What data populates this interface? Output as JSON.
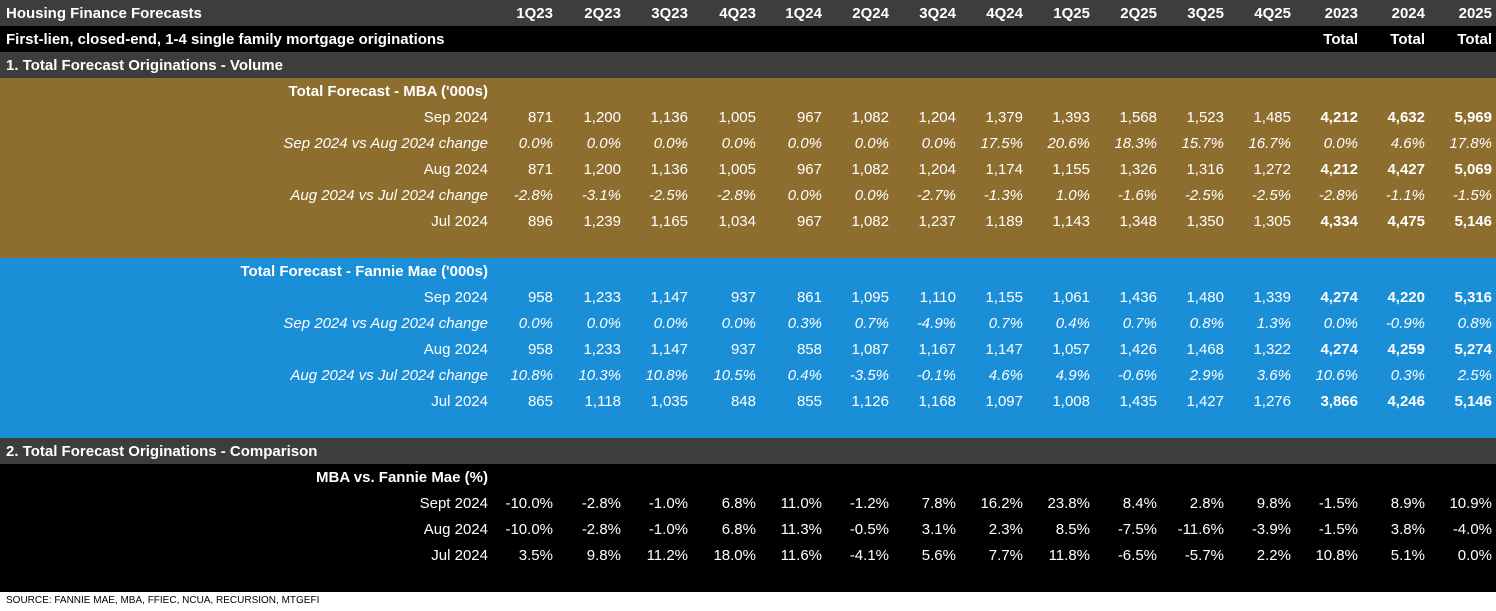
{
  "colors": {
    "header_bg": "#3d3d3d",
    "subheader_bg": "#000000",
    "mba_bg": "#8e6e2e",
    "fannie_bg": "#1a8fd8",
    "comparison_bg": "#000000",
    "text": "#ffffff"
  },
  "header": {
    "title": "Housing Finance Forecasts",
    "subtitle": "First-lien, closed-end, 1-4 single family mortgage originations",
    "columns": [
      "1Q23",
      "2Q23",
      "3Q23",
      "4Q23",
      "1Q24",
      "2Q24",
      "3Q24",
      "4Q24",
      "1Q25",
      "2Q25",
      "3Q25",
      "4Q25",
      "2023",
      "2024",
      "2025"
    ],
    "subcolumns": [
      "",
      "",
      "",
      "",
      "",
      "",
      "",
      "",
      "",
      "",
      "",
      "",
      "Total",
      "Total",
      "Total"
    ]
  },
  "section1": {
    "title": "1. Total Forecast Originations - Volume"
  },
  "mba": {
    "title": "Total Forecast - MBA ('000s)",
    "rows": [
      {
        "label": "Sep 2024",
        "style": "plain",
        "values": [
          "871",
          "1,200",
          "1,136",
          "1,005",
          "967",
          "1,082",
          "1,204",
          "1,379",
          "1,393",
          "1,568",
          "1,523",
          "1,485",
          "4,212",
          "4,632",
          "5,969"
        ]
      },
      {
        "label": "Sep 2024 vs Aug 2024 change",
        "style": "italic",
        "values": [
          "0.0%",
          "0.0%",
          "0.0%",
          "0.0%",
          "0.0%",
          "0.0%",
          "0.0%",
          "17.5%",
          "20.6%",
          "18.3%",
          "15.7%",
          "16.7%",
          "0.0%",
          "4.6%",
          "17.8%"
        ]
      },
      {
        "label": "Aug 2024",
        "style": "plain",
        "values": [
          "871",
          "1,200",
          "1,136",
          "1,005",
          "967",
          "1,082",
          "1,204",
          "1,174",
          "1,155",
          "1,326",
          "1,316",
          "1,272",
          "4,212",
          "4,427",
          "5,069"
        ]
      },
      {
        "label": "Aug 2024 vs Jul 2024 change",
        "style": "italic",
        "values": [
          "-2.8%",
          "-3.1%",
          "-2.5%",
          "-2.8%",
          "0.0%",
          "0.0%",
          "-2.7%",
          "-1.3%",
          "1.0%",
          "-1.6%",
          "-2.5%",
          "-2.5%",
          "-2.8%",
          "-1.1%",
          "-1.5%"
        ]
      },
      {
        "label": "Jul 2024",
        "style": "plain",
        "values": [
          "896",
          "1,239",
          "1,165",
          "1,034",
          "967",
          "1,082",
          "1,237",
          "1,189",
          "1,143",
          "1,348",
          "1,350",
          "1,305",
          "4,334",
          "4,475",
          "5,146"
        ]
      }
    ]
  },
  "fannie": {
    "title": "Total Forecast - Fannie Mae ('000s)",
    "rows": [
      {
        "label": "Sep 2024",
        "style": "plain",
        "values": [
          "958",
          "1,233",
          "1,147",
          "937",
          "861",
          "1,095",
          "1,110",
          "1,155",
          "1,061",
          "1,436",
          "1,480",
          "1,339",
          "4,274",
          "4,220",
          "5,316"
        ]
      },
      {
        "label": "Sep 2024 vs Aug 2024 change",
        "style": "italic",
        "values": [
          "0.0%",
          "0.0%",
          "0.0%",
          "0.0%",
          "0.3%",
          "0.7%",
          "-4.9%",
          "0.7%",
          "0.4%",
          "0.7%",
          "0.8%",
          "1.3%",
          "0.0%",
          "-0.9%",
          "0.8%"
        ]
      },
      {
        "label": "Aug 2024",
        "style": "plain",
        "values": [
          "958",
          "1,233",
          "1,147",
          "937",
          "858",
          "1,087",
          "1,167",
          "1,147",
          "1,057",
          "1,426",
          "1,468",
          "1,322",
          "4,274",
          "4,259",
          "5,274"
        ]
      },
      {
        "label": "Aug 2024 vs Jul 2024 change",
        "style": "italic",
        "values": [
          "10.8%",
          "10.3%",
          "10.8%",
          "10.5%",
          "0.4%",
          "-3.5%",
          "-0.1%",
          "4.6%",
          "4.9%",
          "-0.6%",
          "2.9%",
          "3.6%",
          "10.6%",
          "0.3%",
          "2.5%"
        ]
      },
      {
        "label": "Jul 2024",
        "style": "plain",
        "values": [
          "865",
          "1,118",
          "1,035",
          "848",
          "855",
          "1,126",
          "1,168",
          "1,097",
          "1,008",
          "1,435",
          "1,427",
          "1,276",
          "3,866",
          "4,246",
          "5,146"
        ]
      }
    ]
  },
  "section2": {
    "title": "2. Total Forecast Originations - Comparison"
  },
  "comparison": {
    "title": "MBA vs. Fannie Mae (%)",
    "rows": [
      {
        "label": "Sept 2024",
        "style": "plain",
        "values": [
          "-10.0%",
          "-2.8%",
          "-1.0%",
          "6.8%",
          "11.0%",
          "-1.2%",
          "7.8%",
          "16.2%",
          "23.8%",
          "8.4%",
          "2.8%",
          "9.8%",
          "-1.5%",
          "8.9%",
          "10.9%"
        ]
      },
      {
        "label": "Aug 2024",
        "style": "plain",
        "values": [
          "-10.0%",
          "-2.8%",
          "-1.0%",
          "6.8%",
          "11.3%",
          "-0.5%",
          "3.1%",
          "2.3%",
          "8.5%",
          "-7.5%",
          "-11.6%",
          "-3.9%",
          "-1.5%",
          "3.8%",
          "-4.0%"
        ]
      },
      {
        "label": "Jul 2024",
        "style": "plain",
        "values": [
          "3.5%",
          "9.8%",
          "11.2%",
          "18.0%",
          "11.6%",
          "-4.1%",
          "5.6%",
          "7.7%",
          "11.8%",
          "-6.5%",
          "-5.7%",
          "2.2%",
          "10.8%",
          "5.1%",
          "0.0%"
        ]
      }
    ]
  },
  "source": "SOURCE: FANNIE MAE, MBA, FFIEC, NCUA, RECURSION, MTGEFI"
}
